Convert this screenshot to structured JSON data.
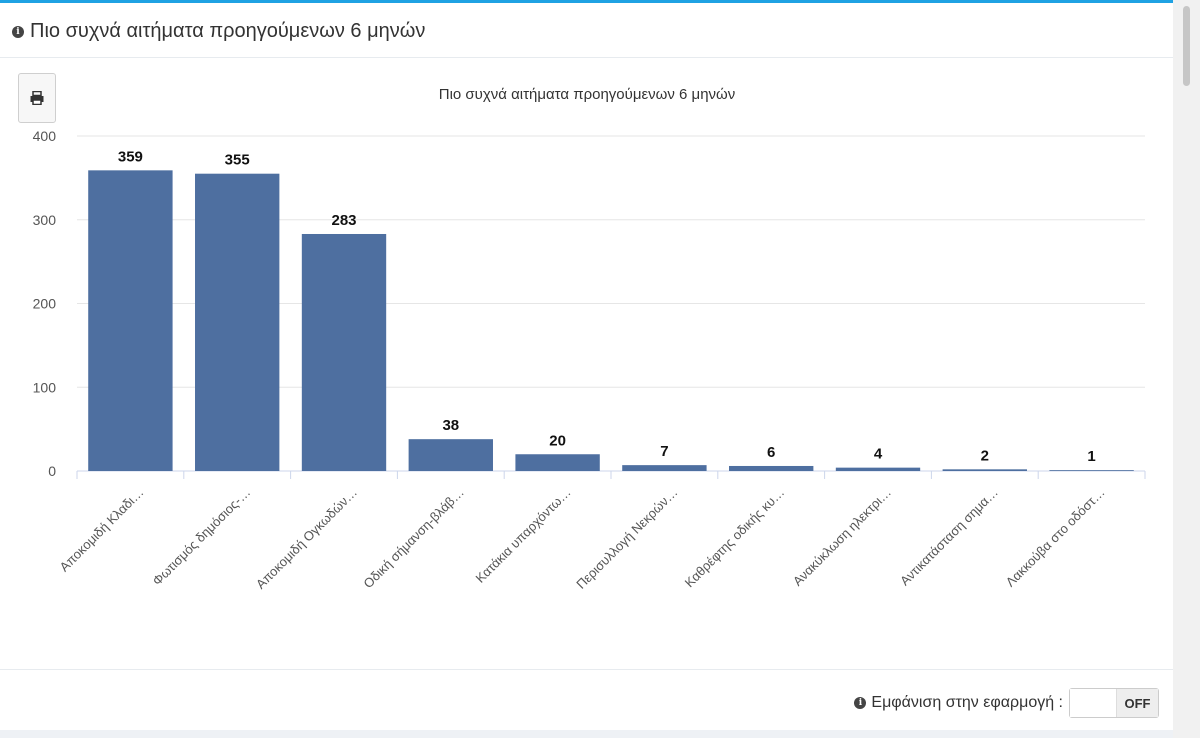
{
  "panel": {
    "title": "Πιο συχνά αιτήματα προηγούμενων 6 μηνών",
    "icon": "info-icon"
  },
  "print_button": {
    "icon": "print-icon"
  },
  "footer": {
    "toggle_label": "Εμφάνιση στην εφαρμογή :",
    "toggle_state": "OFF",
    "icon": "info-icon"
  },
  "colors": {
    "bar": "#4e6fa0",
    "accent": "#1fa2e3",
    "grid": "#e6e6e6"
  },
  "chart_data": {
    "type": "bar",
    "title": "Πιο συχνά αιτήματα προηγούμενων 6 μηνών",
    "categories": [
      "Αποκομιδή Κλαδι…",
      "Φωτισμός δημόσιος-…",
      "Αποκομιδή Ογκωδών…",
      "Οδική σήμανση-βλάβ…",
      "Κατάκια υπαρχόντω…",
      "Περισυλλογή Νεκρών…",
      "Καθρέφτης οδικής κυ…",
      "Ανακύκλωση ηλεκτρι…",
      "Αντικατάσταση σημα…",
      "Λακκούβα στο οδόστ…"
    ],
    "values": [
      359,
      355,
      283,
      38,
      20,
      7,
      6,
      4,
      2,
      1
    ],
    "ylim": [
      0,
      400
    ],
    "yticks": [
      0,
      100,
      200,
      300,
      400
    ],
    "xlabel": "",
    "ylabel": "",
    "grid": true,
    "data_labels": true
  }
}
